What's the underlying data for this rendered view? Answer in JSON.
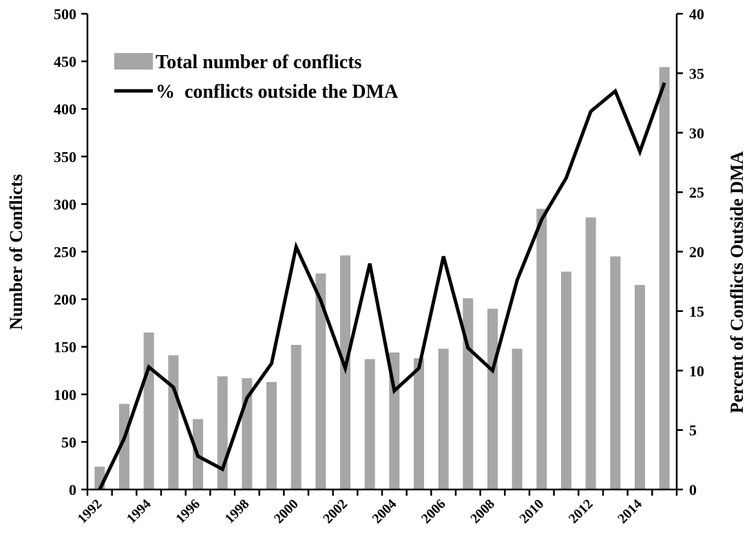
{
  "chart_data": {
    "type": "bar",
    "x_tick_labels": [
      "1992",
      "1994",
      "1996",
      "1998",
      "2000",
      "2002",
      "2004",
      "2006",
      "2008",
      "2010",
      "2012",
      "2014"
    ],
    "years": [
      1992,
      1993,
      1994,
      1995,
      1996,
      1997,
      1998,
      1999,
      2000,
      2001,
      2002,
      2003,
      2004,
      2005,
      2006,
      2007,
      2008,
      2009,
      2010,
      2011,
      2012,
      2013,
      2014,
      2015
    ],
    "series": [
      {
        "name": "Total number of conflicts",
        "type": "bar",
        "axis": "left",
        "color": "#a6a6a6",
        "values": [
          24,
          90,
          165,
          141,
          74,
          119,
          117,
          113,
          152,
          227,
          246,
          137,
          144,
          138,
          148,
          201,
          190,
          148,
          295,
          229,
          286,
          245,
          215,
          444
        ]
      },
      {
        "name": "%  conflicts outside the DMA",
        "type": "line",
        "axis": "right",
        "color": "#000000",
        "values": [
          0,
          4.3,
          10.3,
          8.6,
          2.8,
          1.7,
          7.7,
          10.6,
          20.4,
          15.9,
          10.2,
          19.0,
          8.3,
          10.2,
          19.6,
          11.9,
          10.0,
          17.6,
          22.7,
          26.2,
          31.8,
          33.5,
          28.4,
          34.2
        ]
      }
    ],
    "y_left": {
      "label": "Number of Conflicts",
      "ylim": [
        0,
        500
      ],
      "ticks": [
        0,
        50,
        100,
        150,
        200,
        250,
        300,
        350,
        400,
        450,
        500
      ]
    },
    "y_right": {
      "label": "Percent of Conflicts Outside DMA",
      "ylim": [
        0,
        40
      ],
      "ticks": [
        0,
        5,
        10,
        15,
        20,
        25,
        30,
        35,
        40
      ]
    },
    "legend": "top-left",
    "grid": false
  }
}
